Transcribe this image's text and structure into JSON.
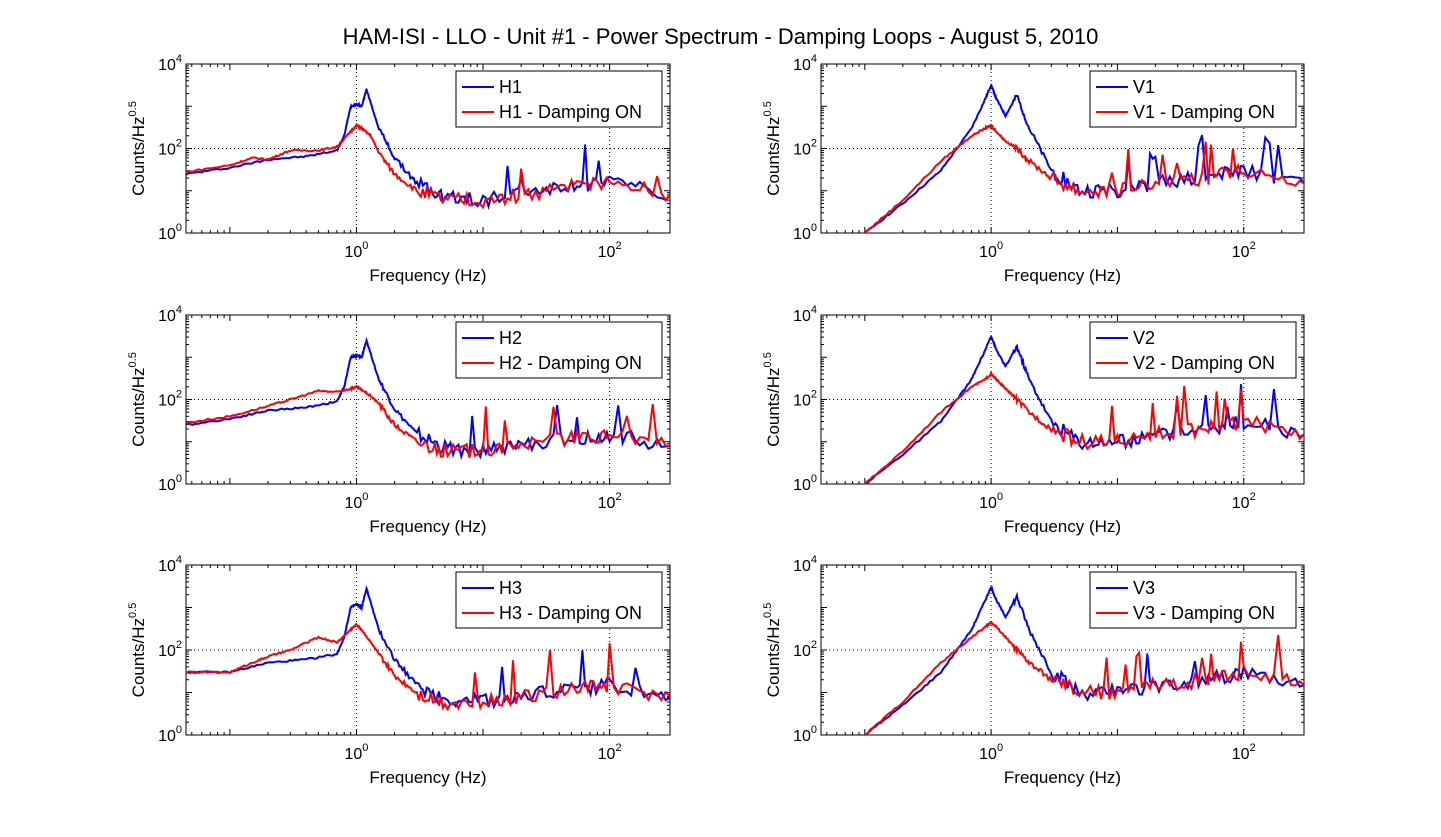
{
  "title": "HAM-ISI - LLO - Unit #1 - Power Spectrum - Damping Loops - August 5, 2010",
  "colors": {
    "blue": "#0000ff",
    "red": "#ff0000",
    "axes": "#000000",
    "grid": "#000000"
  },
  "chart_data": [
    {
      "type": "line",
      "xscale": "log",
      "yscale": "log",
      "xlabel": "Frequency (Hz)",
      "ylabel": "Counts/Hz^0.5",
      "xlim": [
        0.045,
        300
      ],
      "ylim": [
        1,
        10000
      ],
      "xticks": [
        "10^0",
        "10^2"
      ],
      "yticks": [
        "10^0",
        "10^2",
        "10^4"
      ],
      "grid": true,
      "legend": "top-right",
      "series": [
        {
          "name": "H1",
          "color": "#0000ff",
          "x": [
            0.045,
            0.1,
            0.2,
            0.4,
            0.7,
            0.8,
            0.9,
            1.0,
            1.1,
            1.2,
            1.5,
            2,
            3,
            5,
            10,
            20,
            50,
            100,
            300
          ],
          "y": [
            25,
            35,
            55,
            65,
            90,
            200,
            1000,
            1100,
            1000,
            2500,
            300,
            60,
            15,
            7,
            6,
            8,
            12,
            15,
            8
          ]
        },
        {
          "name": "H1 - Damping ON",
          "color": "#ff0000",
          "x": [
            0.045,
            0.1,
            0.15,
            0.2,
            0.3,
            0.5,
            0.7,
            0.9,
            1.0,
            1.1,
            1.3,
            1.5,
            2,
            3,
            5,
            10,
            20,
            50,
            100,
            300
          ],
          "y": [
            28,
            40,
            60,
            55,
            90,
            90,
            110,
            250,
            350,
            300,
            200,
            80,
            25,
            10,
            6,
            6,
            8,
            12,
            15,
            8
          ]
        }
      ]
    },
    {
      "type": "line",
      "xscale": "log",
      "yscale": "log",
      "xlabel": "Frequency (Hz)",
      "ylabel": "Counts/Hz^0.5",
      "xlim": [
        0.045,
        300
      ],
      "ylim": [
        1,
        10000
      ],
      "xticks": [
        "10^0",
        "10^2"
      ],
      "yticks": [
        "10^0",
        "10^2",
        "10^4"
      ],
      "grid": true,
      "legend": "top-right",
      "series": [
        {
          "name": "V1",
          "color": "#0000ff",
          "x": [
            0.1,
            0.2,
            0.4,
            0.7,
            0.9,
            1.0,
            1.1,
            1.3,
            1.6,
            2,
            3,
            5,
            10,
            20,
            50,
            100,
            300
          ],
          "y": [
            1,
            5,
            30,
            300,
            1500,
            3200,
            1500,
            600,
            1800,
            300,
            30,
            10,
            10,
            15,
            20,
            30,
            15
          ]
        },
        {
          "name": "V1 - Damping ON",
          "color": "#ff0000",
          "x": [
            0.1,
            0.2,
            0.4,
            0.7,
            0.9,
            1.0,
            1.1,
            1.3,
            1.6,
            2,
            3,
            5,
            10,
            20,
            50,
            100,
            300
          ],
          "y": [
            1,
            6,
            50,
            200,
            300,
            350,
            250,
            150,
            100,
            50,
            20,
            10,
            10,
            15,
            20,
            30,
            15
          ]
        }
      ]
    },
    {
      "type": "line",
      "xscale": "log",
      "yscale": "log",
      "xlabel": "Frequency (Hz)",
      "ylabel": "Counts/Hz^0.5",
      "xlim": [
        0.045,
        300
      ],
      "ylim": [
        1,
        10000
      ],
      "xticks": [
        "10^0",
        "10^2"
      ],
      "yticks": [
        "10^0",
        "10^2",
        "10^4"
      ],
      "grid": true,
      "legend": "top-right",
      "series": [
        {
          "name": "H2",
          "color": "#0000ff",
          "x": [
            0.045,
            0.1,
            0.2,
            0.4,
            0.7,
            0.8,
            0.9,
            1.0,
            1.1,
            1.2,
            1.5,
            2,
            3,
            5,
            10,
            20,
            50,
            100,
            300
          ],
          "y": [
            25,
            35,
            55,
            65,
            90,
            200,
            1000,
            1100,
            1000,
            2500,
            300,
            60,
            15,
            7,
            6,
            8,
            12,
            15,
            8
          ]
        },
        {
          "name": "H2 - Damping ON",
          "color": "#ff0000",
          "x": [
            0.045,
            0.1,
            0.2,
            0.3,
            0.5,
            0.7,
            0.9,
            1.0,
            1.1,
            1.3,
            1.5,
            2,
            3,
            5,
            10,
            20,
            50,
            100,
            300
          ],
          "y": [
            28,
            40,
            70,
            100,
            160,
            150,
            180,
            200,
            170,
            120,
            80,
            25,
            10,
            6,
            6,
            8,
            12,
            15,
            8
          ]
        }
      ]
    },
    {
      "type": "line",
      "xscale": "log",
      "yscale": "log",
      "xlabel": "Frequency (Hz)",
      "ylabel": "Counts/Hz^0.5",
      "xlim": [
        0.045,
        300
      ],
      "ylim": [
        1,
        10000
      ],
      "xticks": [
        "10^0",
        "10^2"
      ],
      "yticks": [
        "10^0",
        "10^2",
        "10^4"
      ],
      "grid": true,
      "legend": "top-right",
      "series": [
        {
          "name": "V2",
          "color": "#0000ff",
          "x": [
            0.1,
            0.2,
            0.4,
            0.7,
            0.9,
            1.0,
            1.1,
            1.3,
            1.6,
            2,
            3,
            5,
            10,
            20,
            50,
            100,
            300
          ],
          "y": [
            1,
            5,
            30,
            300,
            1500,
            3200,
            1500,
            600,
            1800,
            300,
            30,
            10,
            10,
            15,
            20,
            30,
            15
          ]
        },
        {
          "name": "V2 - Damping ON",
          "color": "#ff0000",
          "x": [
            0.1,
            0.2,
            0.4,
            0.7,
            0.9,
            1.0,
            1.1,
            1.3,
            1.6,
            2,
            3,
            5,
            10,
            20,
            50,
            100,
            300
          ],
          "y": [
            1,
            6,
            50,
            200,
            300,
            400,
            300,
            180,
            100,
            50,
            20,
            10,
            10,
            15,
            20,
            30,
            15
          ]
        }
      ]
    },
    {
      "type": "line",
      "xscale": "log",
      "yscale": "log",
      "xlabel": "Frequency (Hz)",
      "ylabel": "Counts/Hz^0.5",
      "xlim": [
        0.045,
        300
      ],
      "ylim": [
        1,
        10000
      ],
      "xticks": [
        "10^0",
        "10^2"
      ],
      "yticks": [
        "10^0",
        "10^2",
        "10^4"
      ],
      "grid": true,
      "legend": "top-right",
      "series": [
        {
          "name": "H3",
          "color": "#0000ff",
          "x": [
            0.045,
            0.1,
            0.2,
            0.4,
            0.7,
            0.8,
            0.9,
            1.0,
            1.1,
            1.2,
            1.5,
            2,
            3,
            5,
            10,
            20,
            50,
            100,
            300
          ],
          "y": [
            30,
            30,
            50,
            60,
            80,
            200,
            1000,
            1200,
            1000,
            2800,
            300,
            60,
            15,
            7,
            6,
            8,
            12,
            15,
            8
          ]
        },
        {
          "name": "H3 - Damping ON",
          "color": "#ff0000",
          "x": [
            0.045,
            0.1,
            0.15,
            0.2,
            0.3,
            0.5,
            0.7,
            0.9,
            1.0,
            1.1,
            1.3,
            1.5,
            2,
            3,
            5,
            10,
            20,
            50,
            100,
            300
          ],
          "y": [
            30,
            30,
            50,
            70,
            100,
            200,
            150,
            300,
            400,
            300,
            150,
            80,
            25,
            10,
            6,
            6,
            8,
            12,
            15,
            8
          ]
        }
      ]
    },
    {
      "type": "line",
      "xscale": "log",
      "yscale": "log",
      "xlabel": "Frequency (Hz)",
      "ylabel": "Counts/Hz^0.5",
      "xlim": [
        0.045,
        300
      ],
      "ylim": [
        1,
        10000
      ],
      "xticks": [
        "10^0",
        "10^2"
      ],
      "yticks": [
        "10^0",
        "10^2",
        "10^4"
      ],
      "grid": true,
      "legend": "top-right",
      "series": [
        {
          "name": "V3",
          "color": "#0000ff",
          "x": [
            0.1,
            0.2,
            0.4,
            0.7,
            0.9,
            1.0,
            1.1,
            1.3,
            1.6,
            2,
            3,
            5,
            10,
            20,
            50,
            100,
            300
          ],
          "y": [
            1,
            5,
            30,
            300,
            1500,
            3000,
            1500,
            600,
            1800,
            300,
            30,
            10,
            10,
            15,
            20,
            30,
            15
          ]
        },
        {
          "name": "V3 - Damping ON",
          "color": "#ff0000",
          "x": [
            0.1,
            0.2,
            0.4,
            0.7,
            0.9,
            1.0,
            1.1,
            1.3,
            1.6,
            2,
            3,
            5,
            10,
            20,
            50,
            100,
            300
          ],
          "y": [
            1,
            6,
            50,
            200,
            350,
            450,
            350,
            200,
            100,
            50,
            20,
            10,
            10,
            15,
            20,
            30,
            15
          ]
        }
      ]
    }
  ]
}
